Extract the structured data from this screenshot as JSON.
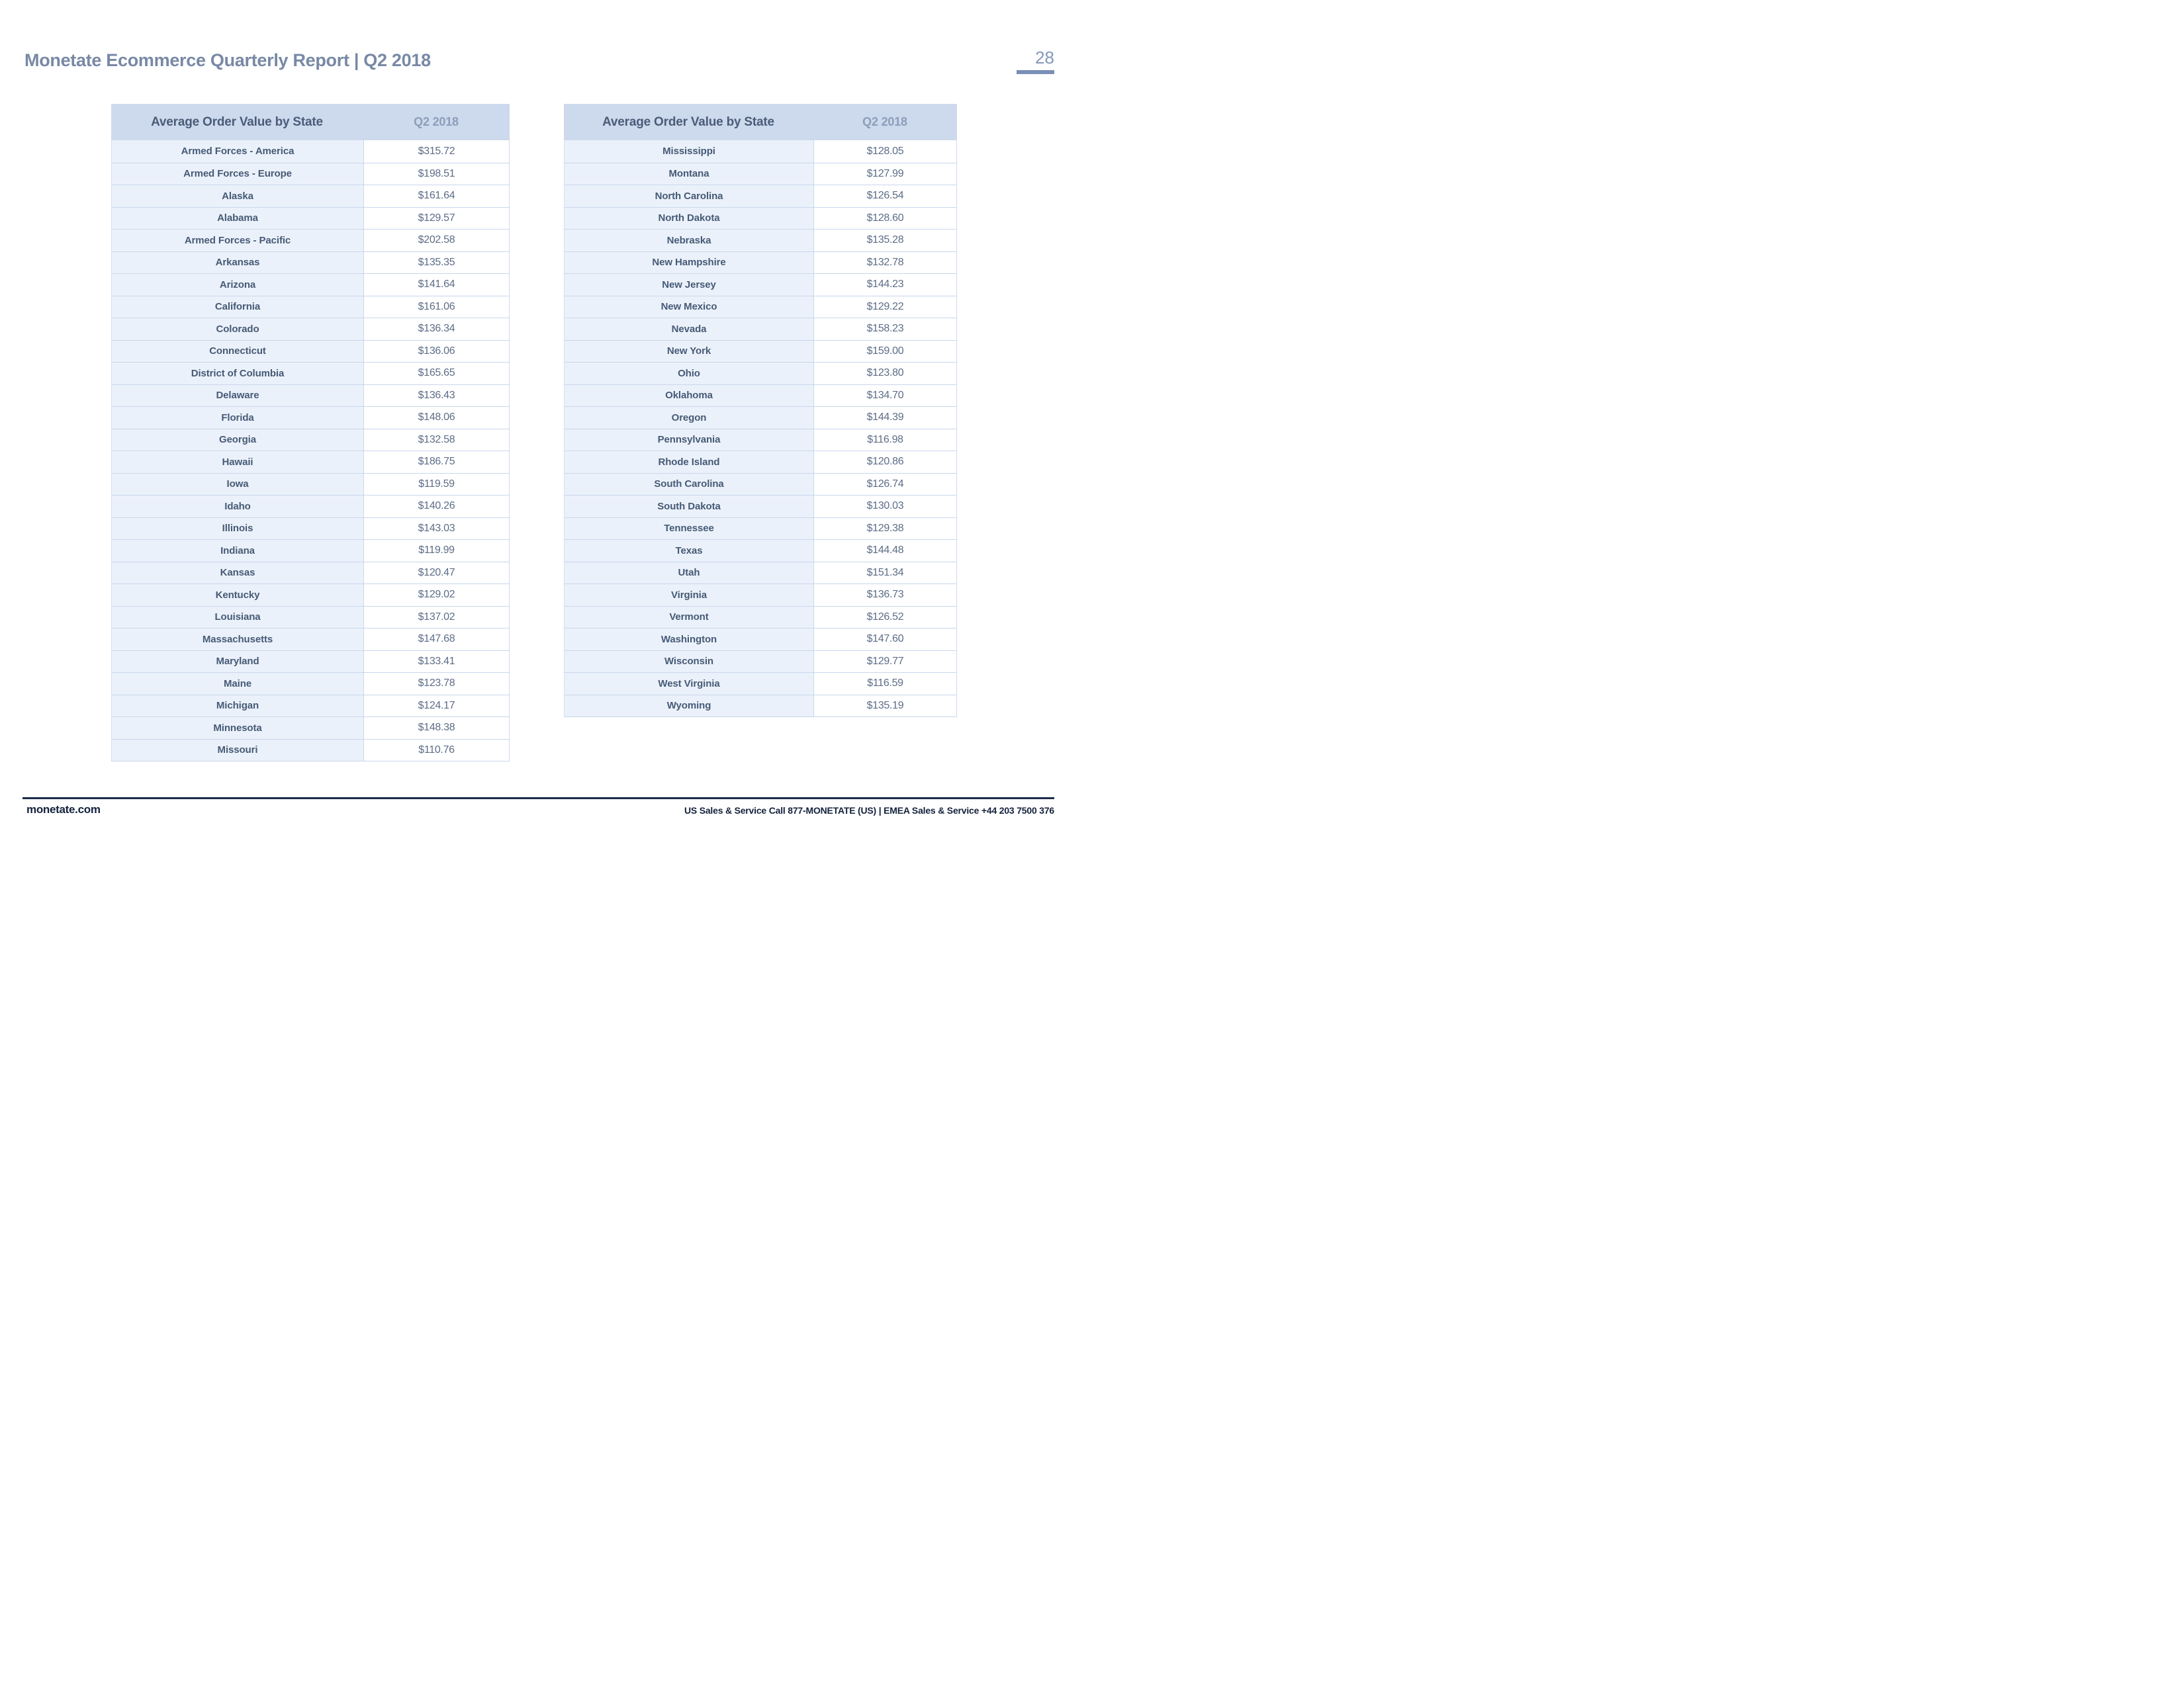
{
  "page": {
    "title": "Monetate Ecommerce Quarterly Report | Q2 2018",
    "page_number": "28"
  },
  "tables": [
    {
      "header": "Average Order Value by State",
      "period": "Q2 2018",
      "rows": [
        {
          "state": "Armed Forces - America",
          "value": "$315.72"
        },
        {
          "state": "Armed Forces - Europe",
          "value": "$198.51"
        },
        {
          "state": "Alaska",
          "value": "$161.64"
        },
        {
          "state": "Alabama",
          "value": "$129.57"
        },
        {
          "state": "Armed Forces - Pacific",
          "value": "$202.58"
        },
        {
          "state": "Arkansas",
          "value": "$135.35"
        },
        {
          "state": "Arizona",
          "value": "$141.64"
        },
        {
          "state": "California",
          "value": "$161.06"
        },
        {
          "state": "Colorado",
          "value": "$136.34"
        },
        {
          "state": "Connecticut",
          "value": "$136.06"
        },
        {
          "state": "District of Columbia",
          "value": "$165.65"
        },
        {
          "state": "Delaware",
          "value": "$136.43"
        },
        {
          "state": "Florida",
          "value": "$148.06"
        },
        {
          "state": "Georgia",
          "value": "$132.58"
        },
        {
          "state": "Hawaii",
          "value": "$186.75"
        },
        {
          "state": "Iowa",
          "value": "$119.59"
        },
        {
          "state": "Idaho",
          "value": "$140.26"
        },
        {
          "state": "Illinois",
          "value": "$143.03"
        },
        {
          "state": "Indiana",
          "value": "$119.99"
        },
        {
          "state": "Kansas",
          "value": "$120.47"
        },
        {
          "state": "Kentucky",
          "value": "$129.02"
        },
        {
          "state": "Louisiana",
          "value": "$137.02"
        },
        {
          "state": "Massachusetts",
          "value": "$147.68"
        },
        {
          "state": "Maryland",
          "value": "$133.41"
        },
        {
          "state": "Maine",
          "value": "$123.78"
        },
        {
          "state": "Michigan",
          "value": "$124.17"
        },
        {
          "state": "Minnesota",
          "value": "$148.38"
        },
        {
          "state": "Missouri",
          "value": "$110.76"
        }
      ]
    },
    {
      "header": "Average Order Value by State",
      "period": "Q2 2018",
      "rows": [
        {
          "state": "Mississippi",
          "value": "$128.05"
        },
        {
          "state": "Montana",
          "value": "$127.99"
        },
        {
          "state": "North Carolina",
          "value": "$126.54"
        },
        {
          "state": "North Dakota",
          "value": "$128.60"
        },
        {
          "state": "Nebraska",
          "value": "$135.28"
        },
        {
          "state": "New Hampshire",
          "value": "$132.78"
        },
        {
          "state": "New Jersey",
          "value": "$144.23"
        },
        {
          "state": "New Mexico",
          "value": "$129.22"
        },
        {
          "state": "Nevada",
          "value": "$158.23"
        },
        {
          "state": "New York",
          "value": "$159.00"
        },
        {
          "state": "Ohio",
          "value": "$123.80"
        },
        {
          "state": "Oklahoma",
          "value": "$134.70"
        },
        {
          "state": "Oregon",
          "value": "$144.39"
        },
        {
          "state": "Pennsylvania",
          "value": "$116.98"
        },
        {
          "state": "Rhode Island",
          "value": "$120.86"
        },
        {
          "state": "South Carolina",
          "value": "$126.74"
        },
        {
          "state": "South Dakota",
          "value": "$130.03"
        },
        {
          "state": "Tennessee",
          "value": "$129.38"
        },
        {
          "state": "Texas",
          "value": "$144.48"
        },
        {
          "state": "Utah",
          "value": "$151.34"
        },
        {
          "state": "Virginia",
          "value": "$136.73"
        },
        {
          "state": "Vermont",
          "value": "$126.52"
        },
        {
          "state": "Washington",
          "value": "$147.60"
        },
        {
          "state": "Wisconsin",
          "value": "$129.77"
        },
        {
          "state": "West Virginia",
          "value": "$116.59"
        },
        {
          "state": "Wyoming",
          "value": "$135.19"
        }
      ]
    }
  ],
  "footer": {
    "site": "monetate.com",
    "contact": "US Sales & Service Call 877-MONETATE (US) | EMEA Sales & Service +44 203 7500 376"
  },
  "colors": {
    "accent_bar": "#7a8fb5",
    "table_header_bg": "#cdd9ec",
    "name_cell_bg": "#ebf1fa",
    "row_border": "#c9d7ec",
    "title_text": "#7889a5",
    "header_text": "#4a5c78",
    "period_text": "#8d9eba",
    "state_text": "#465a76",
    "value_text": "#5c6d87",
    "footer_text": "#13213c"
  }
}
